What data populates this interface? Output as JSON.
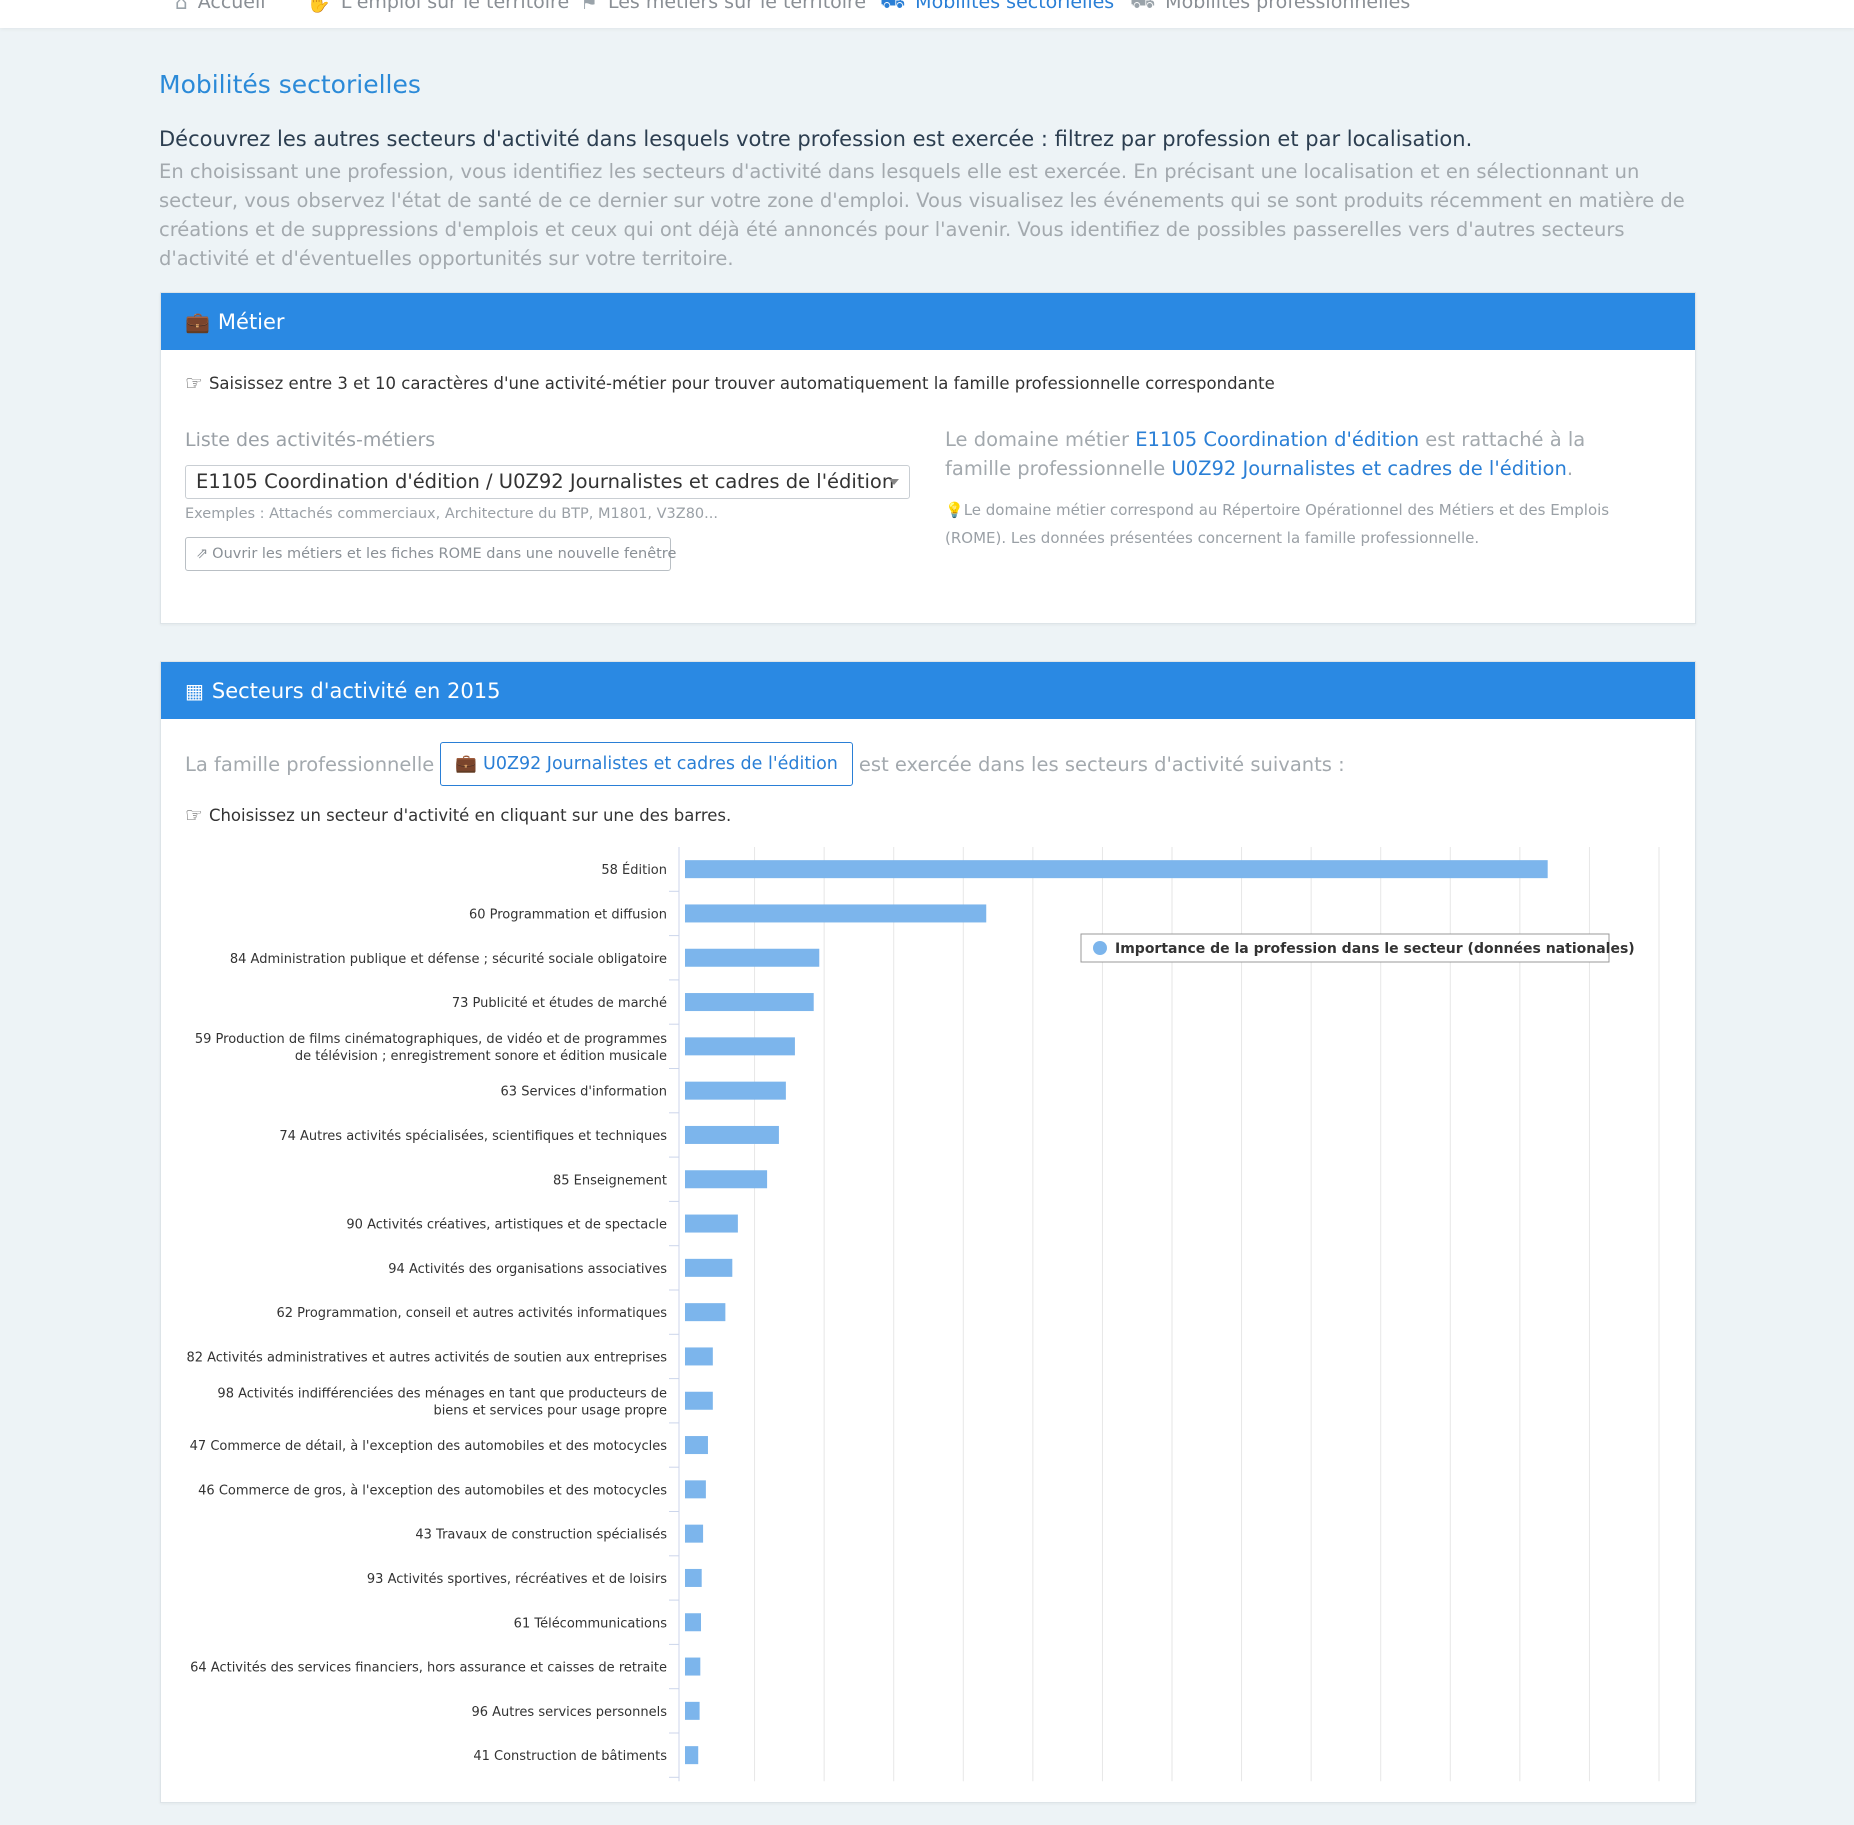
{
  "nav": {
    "items": [
      {
        "label": "Accueil",
        "icon": "home-icon"
      },
      {
        "label": "L'emploi sur le territoire",
        "icon": "handshake-icon"
      },
      {
        "label": "Les métiers sur le territoire",
        "icon": "bullhorn-icon"
      },
      {
        "label": "Mobilités sectorielles",
        "icon": "truck-icon",
        "active": true
      },
      {
        "label": "Mobilités professionnelles",
        "icon": "bus-icon"
      }
    ]
  },
  "page": {
    "title": "Mobilités sectorielles",
    "lead": "Découvrez les autres secteurs d'activité dans lesquels votre profession est exercée : filtrez par profession et par localisation.",
    "description": "En choisissant une profession, vous identifiez les secteurs d'activité dans lesquels elle est exercée. En précisant une localisation et en sélectionnant un secteur, vous observez l'état de santé de ce dernier sur votre zone d'emploi. Vous visualisez les événements qui se sont produits récemment en matière de créations et de suppressions d'emplois et ceux qui ont déjà été annoncés pour l'avenir. Vous identifiez de possibles passerelles vers d'autres secteurs d'activité et d'éventuelles opportunités sur votre territoire."
  },
  "metier_panel": {
    "title": "Métier",
    "hint": "Saisissez entre 3 et 10 caractères d'une activité-métier pour trouver automatiquement la famille professionnelle correspondante",
    "field_label": "Liste des activités-métiers",
    "selected_value": "E1105 Coordination d'édition / U0Z92 Journalistes et cadres de l'édition",
    "examples": "Exemples : Attachés commerciaux, Architecture du BTP, M1801, V3Z80...",
    "open_button": "Ouvrir les métiers et les fiches ROME dans une nouvelle fenêtre",
    "right_prefix": "Le domaine métier ",
    "right_domain_link": "E1105 Coordination d'édition",
    "right_middle": " est rattaché à la famille professionnelle ",
    "right_family_link": "U0Z92 Journalistes et cadres de l'édition",
    "right_suffix": ".",
    "note": "Le domaine métier correspond au Répertoire Opérationnel des Métiers et des Emplois (ROME). Les données présentées concernent la famille professionnelle."
  },
  "secteurs_panel": {
    "title": "Secteurs d'activité en 2015",
    "famille_prefix": "La famille professionnelle",
    "famille_button": "U0Z92 Journalistes et cadres de l'édition",
    "famille_suffix": "est exercée dans les secteurs d'activité suivants :",
    "hint": "Choisissez un secteur d'activité en cliquant sur une des barres."
  },
  "colors": {
    "accent": "#2a89e3",
    "link": "#2a7fd6",
    "bar": "#7cb5ec"
  },
  "chart_data": {
    "type": "bar",
    "orientation": "horizontal",
    "legend": "Importance de la profession dans le secteur (données nationales)",
    "legend_position": "top-right",
    "grid": true,
    "xlim": [
      0,
      14
    ],
    "categories": [
      "58 Édition",
      "60 Programmation et diffusion",
      "84 Administration publique et défense ; sécurité sociale obligatoire",
      "73 Publicité et études de marché",
      "59 Production de films cinématographiques, de vidéo et de programmes de télévision ; enregistrement sonore et édition musicale",
      "63 Services d'information",
      "74 Autres activités spécialisées, scientifiques et techniques",
      "85 Enseignement",
      "90 Activités créatives, artistiques et de spectacle",
      "94 Activités des organisations associatives",
      "62 Programmation, conseil et autres activités informatiques",
      "82 Activités administratives et autres activités de soutien aux entreprises",
      "98 Activités indifférenciées des ménages en tant que producteurs de biens et services pour usage propre",
      "47 Commerce de détail, à l'exception des automobiles et des motocycles",
      "46 Commerce de gros, à l'exception des automobiles et des motocycles",
      "43 Travaux de construction spécialisés",
      "93 Activités sportives, récréatives et de loisirs",
      "61 Télécommunications",
      "64 Activités des services financiers, hors assurance et caisses de retraite",
      "96 Autres services personnels",
      "41 Construction de bâtiments"
    ],
    "label_lines": [
      [
        "58 Édition"
      ],
      [
        "60 Programmation et diffusion"
      ],
      [
        "84 Administration publique et défense ; sécurité sociale obligatoire"
      ],
      [
        "73 Publicité et études de marché"
      ],
      [
        "59 Production de films cinématographiques, de vidéo et de programmes",
        "de télévision ; enregistrement sonore et édition musicale"
      ],
      [
        "63 Services d'information"
      ],
      [
        "74 Autres activités spécialisées, scientifiques et techniques"
      ],
      [
        "85 Enseignement"
      ],
      [
        "90 Activités créatives, artistiques et de spectacle"
      ],
      [
        "94 Activités des organisations associatives"
      ],
      [
        "62 Programmation, conseil et autres activités informatiques"
      ],
      [
        "82 Activités administratives et autres activités de soutien aux entreprises"
      ],
      [
        "98 Activités indifférenciées des ménages en tant que producteurs de",
        "biens et services pour usage propre"
      ],
      [
        "47 Commerce de détail, à l'exception des automobiles et des motocycles"
      ],
      [
        "46 Commerce de gros, à l'exception des automobiles et des motocycles"
      ],
      [
        "43 Travaux de construction spécialisés"
      ],
      [
        "93 Activités sportives, récréatives et de loisirs"
      ],
      [
        "61 Télécommunications"
      ],
      [
        "64 Activités des services financiers, hors assurance et caisses de retraite"
      ],
      [
        "96 Autres services personnels"
      ],
      [
        "41 Construction de bâtiments"
      ]
    ],
    "values": [
      12.4,
      4.33,
      1.93,
      1.85,
      1.58,
      1.45,
      1.35,
      1.18,
      0.76,
      0.68,
      0.58,
      0.4,
      0.4,
      0.33,
      0.3,
      0.26,
      0.24,
      0.23,
      0.22,
      0.21,
      0.19
    ]
  }
}
